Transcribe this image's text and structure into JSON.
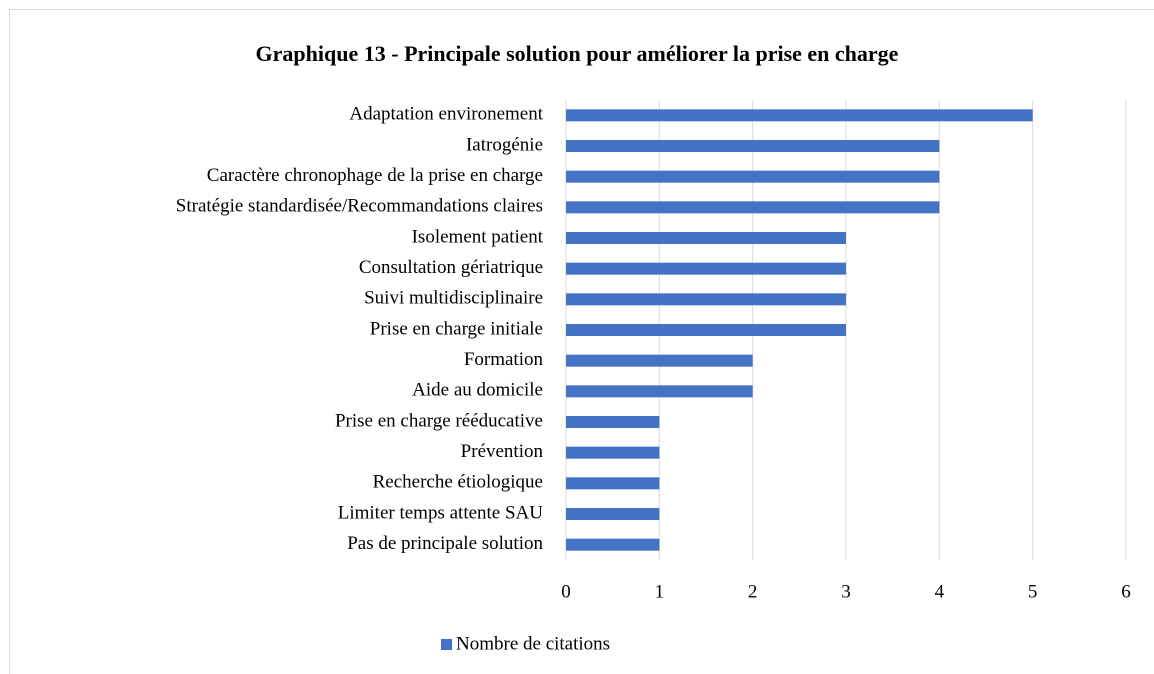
{
  "chart_data": {
    "type": "bar",
    "orientation": "horizontal",
    "title": "Graphique 13 - Principale solution pour améliorer la prise en charge",
    "categories": [
      "Adaptation environement",
      "Iatrogénie",
      "Caractère chronophage de la prise en charge",
      "Stratégie standardisée/Recommandations claires",
      "Isolement patient",
      "Consultation gériatrique",
      "Suivi multidisciplinaire",
      "Prise en charge initiale",
      "Formation",
      "Aide au domicile",
      "Prise en charge rééducative",
      "Prévention",
      "Recherche étiologique",
      "Limiter temps attente SAU",
      "Pas de principale solution"
    ],
    "series": [
      {
        "name": "Nombre de citations",
        "color": "#4472c4",
        "values": [
          5,
          4,
          4,
          4,
          3,
          3,
          3,
          3,
          2,
          2,
          1,
          1,
          1,
          1,
          1
        ]
      }
    ],
    "xlim": [
      0,
      6
    ],
    "xticks": [
      0,
      1,
      2,
      3,
      4,
      5,
      6
    ],
    "grid": true,
    "legend": "bottom"
  }
}
